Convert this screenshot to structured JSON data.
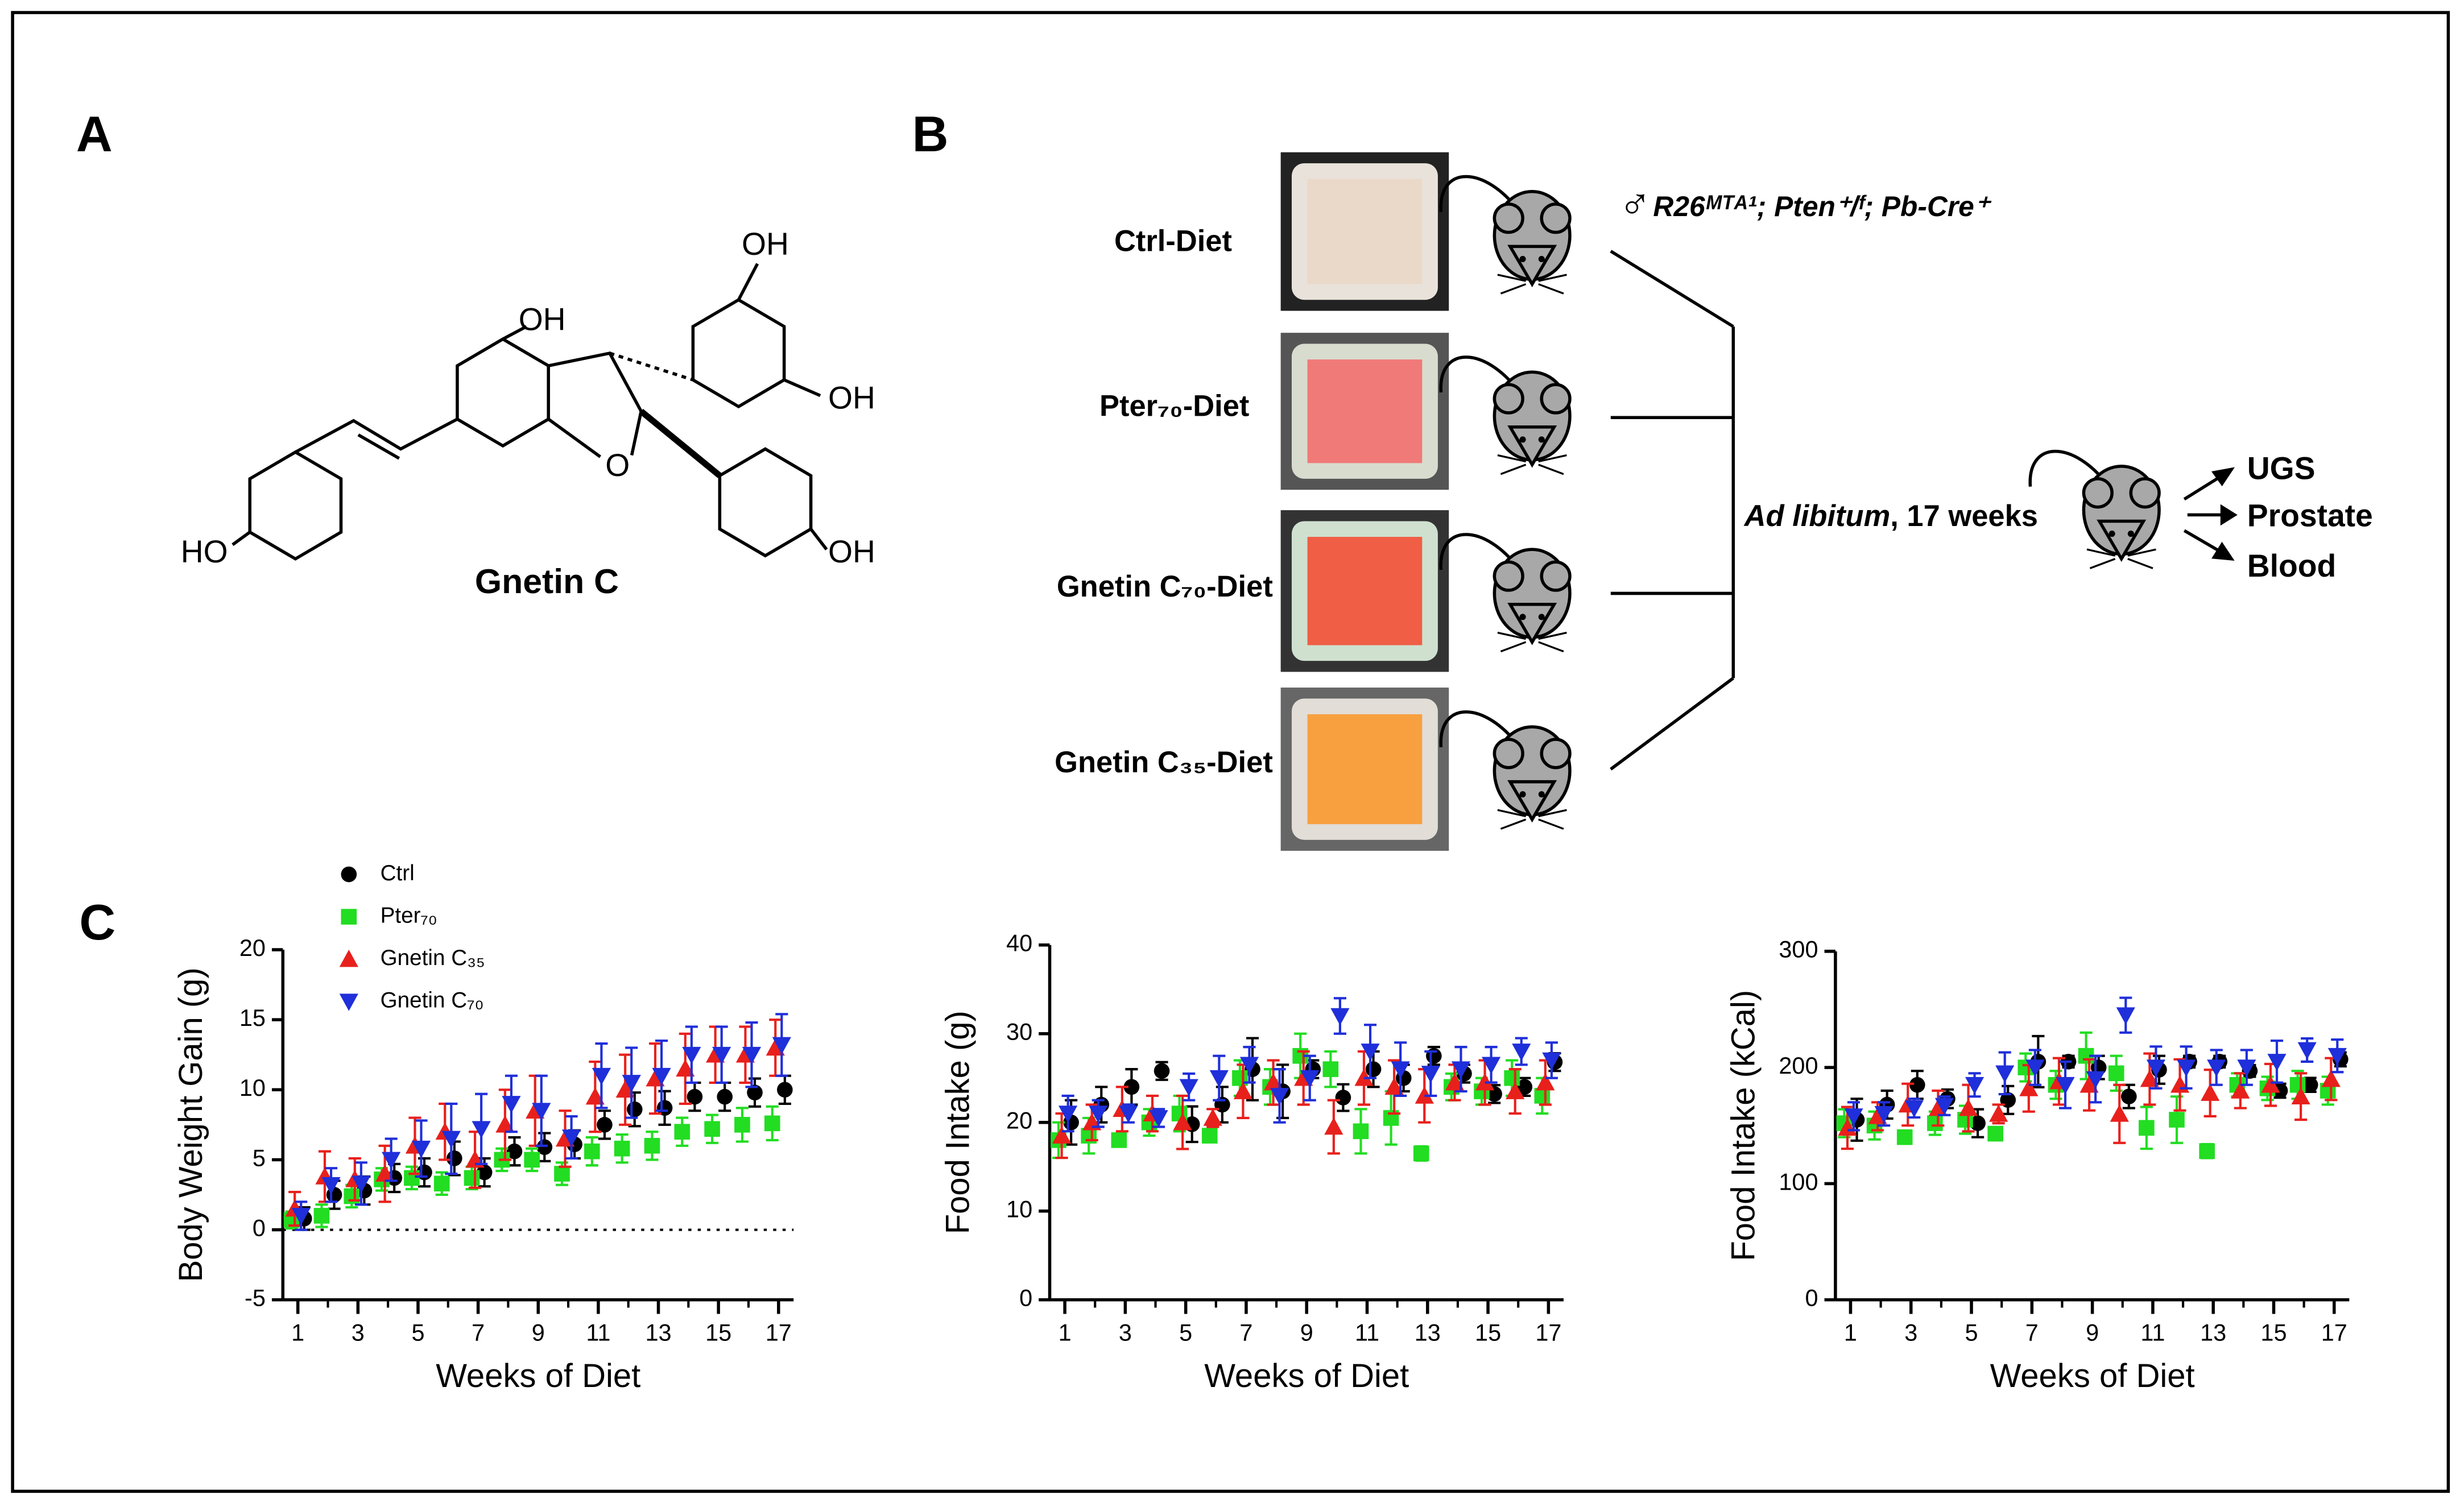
{
  "panels": {
    "a": "A",
    "b": "B",
    "c": "C"
  },
  "structure": {
    "oh_top": "OH",
    "oh_left": "OH",
    "oh_right": "OH",
    "o_ring": "O",
    "ho": "HO",
    "oh_bottom": "OH",
    "name": "Gnetin C"
  },
  "diagram": {
    "diets": [
      "Ctrl-Diet",
      "Pter₇₀-Diet",
      "Gnetin C₇₀-Diet",
      "Gnetin C₃₅-Diet"
    ],
    "sex": "♂",
    "genotype": "R26ᴹᵀᴬ¹; Pten⁺/ᶠ; Pb-Cre⁺",
    "feeding": "Ad libitum",
    "duration": ", 17 weeks",
    "outputs": [
      "UGS",
      "Prostate",
      "Blood"
    ]
  },
  "chart_data": [
    {
      "type": "scatter",
      "ylabel": "Body Weight Gain (g)",
      "xlabel": "Weeks of Diet",
      "x": [
        1,
        2,
        3,
        4,
        5,
        6,
        7,
        8,
        9,
        10,
        11,
        12,
        13,
        14,
        15,
        16,
        17
      ],
      "xlim": [
        0.5,
        17.5
      ],
      "xticks": [
        1,
        3,
        5,
        7,
        9,
        11,
        13,
        15,
        17
      ],
      "ylim": [
        -5,
        20
      ],
      "yticks": [
        -5,
        0,
        5,
        10,
        15,
        20
      ],
      "hline": 0,
      "legend": true,
      "series": [
        {
          "name": "Ctrl",
          "color": "#000000",
          "marker": "circle",
          "values": [
            0.8,
            2.5,
            2.8,
            3.7,
            4.1,
            5.1,
            4.1,
            5.6,
            5.9,
            6.1,
            7.5,
            8.6,
            8.7,
            9.5,
            9.5,
            9.8,
            10
          ],
          "errors": [
            0.8,
            1,
            1,
            1,
            1,
            1.2,
            1,
            1,
            1,
            1,
            1,
            1.2,
            1.2,
            1,
            1,
            1,
            1
          ]
        },
        {
          "name": "Pter₇₀",
          "color": "#22dd22",
          "marker": "square",
          "values": [
            0.7,
            1,
            2.4,
            3.6,
            3.7,
            3.3,
            3.7,
            5,
            5,
            4,
            5.6,
            5.8,
            6,
            7,
            7.2,
            7.5,
            7.6
          ],
          "errors": [
            0.6,
            0.8,
            0.8,
            0.8,
            0.8,
            0.8,
            0.8,
            0.8,
            0.8,
            0.8,
            1,
            1,
            1,
            1,
            1,
            1.2,
            1.2
          ]
        },
        {
          "name": "Gnetin C₃₅",
          "color": "#e8201c",
          "marker": "up",
          "values": [
            1.5,
            3.8,
            3.6,
            4,
            6,
            7,
            5,
            7.5,
            8.5,
            6.5,
            9.5,
            10,
            10.8,
            11.5,
            12.5,
            12.5,
            13
          ],
          "errors": [
            1.2,
            1.8,
            1.5,
            2,
            2,
            2,
            2,
            2.5,
            2.5,
            2,
            2.5,
            2.5,
            2.5,
            2.5,
            2,
            2,
            2
          ]
        },
        {
          "name": "Gnetin C₇₀",
          "color": "#1f2fd9",
          "marker": "down",
          "values": [
            1,
            3.2,
            3.3,
            5,
            5.8,
            6.5,
            7.2,
            9,
            8.5,
            6.6,
            11,
            10.5,
            11,
            12.5,
            12.5,
            12.5,
            13.2
          ],
          "errors": [
            1,
            1.2,
            1.5,
            1.5,
            2,
            2.5,
            2.5,
            2,
            2.5,
            1.5,
            2.3,
            2.5,
            2.5,
            2,
            2,
            2.3,
            2.2
          ]
        }
      ]
    },
    {
      "type": "scatter",
      "ylabel": "Food Intake (g)",
      "xlabel": "Weeks of Diet",
      "x": [
        1,
        2,
        3,
        4,
        5,
        6,
        7,
        8,
        9,
        10,
        11,
        12,
        13,
        14,
        15,
        16,
        17
      ],
      "xlim": [
        0.5,
        17.5
      ],
      "xticks": [
        1,
        3,
        5,
        7,
        9,
        11,
        13,
        15,
        17
      ],
      "ylim": [
        0,
        40
      ],
      "yticks": [
        0,
        10,
        20,
        30,
        40
      ],
      "legend": false,
      "series": [
        {
          "color": "#000000",
          "marker": "circle",
          "values": [
            20,
            22,
            24,
            25.8,
            19.8,
            22,
            26,
            23.5,
            26,
            22.8,
            26,
            25,
            27.5,
            25.5,
            23.2,
            24,
            26.8
          ],
          "errors": [
            2.5,
            2,
            2,
            1,
            2,
            2,
            3.5,
            3,
            1,
            1.5,
            2,
            1.5,
            1,
            1,
            1,
            1,
            1
          ]
        },
        {
          "color": "#22dd22",
          "marker": "square",
          "values": [
            18,
            18.5,
            18,
            20,
            21,
            18.5,
            25,
            24,
            27.5,
            26,
            19,
            20.5,
            16.5,
            24,
            23.5,
            25,
            23
          ],
          "errors": [
            2,
            2,
            0.6,
            1.5,
            2,
            0.6,
            2,
            2,
            2.5,
            2,
            2.5,
            3,
            0.8,
            1.5,
            1.5,
            2,
            2
          ]
        },
        {
          "color": "#e8201c",
          "marker": "up",
          "values": [
            18.5,
            20,
            21.5,
            21,
            20,
            20.5,
            23.5,
            24.5,
            25,
            19.5,
            25,
            24,
            23,
            24.5,
            24.5,
            23.5,
            24.5
          ],
          "errors": [
            2.5,
            2,
            2.5,
            2,
            3,
            1,
            3,
            2.5,
            3,
            3,
            3,
            3,
            3,
            2,
            2.5,
            2.5,
            2.5
          ]
        },
        {
          "color": "#1f2fd9",
          "marker": "down",
          "values": [
            21,
            21,
            21,
            20.5,
            24,
            25,
            26.5,
            23,
            25,
            32,
            28,
            26,
            25.5,
            26,
            26.5,
            28,
            27
          ],
          "errors": [
            2,
            1.5,
            1,
            1,
            1.5,
            2.5,
            2,
            3,
            2.5,
            2,
            3,
            3,
            2.5,
            2.5,
            2,
            1.5,
            2
          ]
        }
      ]
    },
    {
      "type": "scatter",
      "ylabel": "Food Intake (kCal)",
      "xlabel": "Weeks of Diet",
      "x": [
        1,
        2,
        3,
        4,
        5,
        6,
        7,
        8,
        9,
        10,
        11,
        12,
        13,
        14,
        15,
        16,
        17
      ],
      "xlim": [
        0.5,
        17.5
      ],
      "xticks": [
        1,
        3,
        5,
        7,
        9,
        11,
        13,
        15,
        17
      ],
      "ylim": [
        0,
        300
      ],
      "yticks": [
        0,
        100,
        200,
        300
      ],
      "legend": false,
      "series": [
        {
          "color": "#000000",
          "marker": "circle",
          "values": [
            155,
            168,
            185,
            173,
            152,
            172,
            205,
            205,
            200,
            175,
            198,
            205,
            205,
            197,
            180,
            185,
            207
          ],
          "errors": [
            18,
            12,
            12,
            8,
            12,
            12,
            22,
            5,
            10,
            10,
            12,
            5,
            5,
            5,
            6,
            6,
            6
          ]
        },
        {
          "color": "#22dd22",
          "marker": "square",
          "values": [
            152,
            150,
            140,
            152,
            155,
            143,
            200,
            185,
            210,
            195,
            148,
            155,
            128,
            185,
            182,
            185,
            180
          ],
          "errors": [
            12,
            12,
            5,
            10,
            12,
            5,
            12,
            12,
            20,
            15,
            18,
            20,
            6,
            10,
            10,
            12,
            12
          ]
        },
        {
          "color": "#e8201c",
          "marker": "up",
          "values": [
            148,
            158,
            168,
            165,
            165,
            160,
            182,
            188,
            185,
            160,
            190,
            185,
            178,
            180,
            185,
            175,
            190
          ],
          "errors": [
            18,
            12,
            18,
            15,
            20,
            8,
            20,
            20,
            22,
            25,
            22,
            22,
            20,
            15,
            18,
            20,
            18
          ]
        },
        {
          "color": "#1f2fd9",
          "marker": "down",
          "values": [
            158,
            160,
            165,
            167,
            185,
            195,
            200,
            185,
            190,
            245,
            200,
            200,
            200,
            200,
            205,
            215,
            210
          ],
          "errors": [
            12,
            10,
            8,
            8,
            10,
            18,
            15,
            20,
            20,
            15,
            18,
            18,
            15,
            15,
            18,
            10,
            14
          ]
        }
      ]
    }
  ]
}
